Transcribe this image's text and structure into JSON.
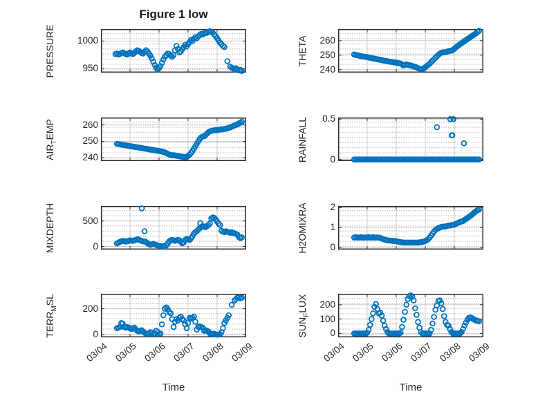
{
  "figure": {
    "title": "Figure 1 low",
    "xlabel": "Time",
    "x_tick_labels": [
      "03/04",
      "03/05",
      "03/06",
      "03/07",
      "03/08",
      "03/09"
    ],
    "marker_color": "#0072BD",
    "axis_color": "#2b2b2b",
    "grid_color": "#cbcbcb",
    "text_color": "#262626"
  },
  "chart_data": [
    {
      "id": "pressure",
      "type": "scatter",
      "row": 0,
      "col": 0,
      "ylabel_parts": {
        "pre": "PRESSURE",
        "sub": "",
        "post": ""
      },
      "ylim": [
        942,
        1022
      ],
      "yticks": [
        950,
        1000
      ],
      "x_unit": "days_since_03/04",
      "xlim": [
        0,
        5
      ],
      "show_x_labels": false,
      "series": {
        "marker": "circle",
        "start": 0.5,
        "step": 0.05,
        "values": [
          976,
          977,
          975,
          976,
          978,
          979,
          978,
          976,
          975,
          977,
          979,
          977,
          976,
          978,
          981,
          983,
          982,
          980,
          978,
          977,
          980,
          983,
          981,
          977,
          973,
          968,
          962,
          956,
          951,
          948,
          950,
          954,
          960,
          966,
          971,
          974,
          977,
          976,
          973,
          971,
          974,
          983,
          991,
          985,
          979,
          981,
          985,
          989,
          993,
          990,
          994,
          998,
          1002,
          1000,
          1004,
          1007,
          1005,
          1008,
          1011,
          1013,
          1012,
          1014,
          1016,
          1015,
          1017,
          1018,
          1017,
          1015,
          1012,
          1009,
          1005,
          1001,
          997,
          994,
          991,
          989,
          null,
          963,
          null,
          953,
          951,
          950,
          948,
          950,
          948,
          946,
          947,
          945
        ],
        "extra": []
      }
    },
    {
      "id": "theta",
      "type": "scatter",
      "row": 0,
      "col": 1,
      "ylabel_parts": {
        "pre": "THETA",
        "sub": "",
        "post": ""
      },
      "ylim": [
        238,
        268
      ],
      "yticks": [
        240,
        250,
        260
      ],
      "x_unit": "days_since_03/04",
      "xlim": [
        0,
        5
      ],
      "show_x_labels": false,
      "series": {
        "marker": "circle",
        "start": 0.55,
        "step": 0.05,
        "values": [
          250.5,
          250.2,
          250,
          249.8,
          249.5,
          249.3,
          249.1,
          249,
          248.8,
          248.6,
          248.4,
          248.2,
          248,
          247.8,
          247.6,
          247.4,
          247.2,
          247,
          246.8,
          246.6,
          246.4,
          246.2,
          246,
          245.8,
          245.6,
          245.5,
          245.3,
          245.1,
          245,
          244.8,
          244.6,
          244.5,
          244.3,
          243.6,
          242.9,
          243.3,
          243.7,
          243.4,
          243.1,
          242.9,
          242.6,
          242.3,
          242,
          241.5,
          241,
          240.7,
          240.4,
          240.6,
          241,
          241.7,
          242.5,
          243.3,
          244.2,
          245.2,
          246.2,
          247.2,
          248.2,
          249.2,
          250.2,
          251,
          251.6,
          251.9,
          252,
          252.1,
          252.4,
          252.8,
          253,
          253.1,
          253.6,
          254.4,
          255.3,
          256.1,
          256.9,
          257.6,
          258.3,
          259,
          259.7,
          260.4,
          261,
          261.7,
          262.4,
          263.1,
          263.8,
          264.5,
          265.2,
          266,
          266.8
        ],
        "extra": []
      }
    },
    {
      "id": "air-temp",
      "type": "scatter",
      "row": 1,
      "col": 0,
      "ylabel_parts": {
        "pre": "AIR",
        "sub": "T",
        "post": "EMP"
      },
      "ylim": [
        238,
        264.5
      ],
      "yticks": [
        240,
        250,
        260
      ],
      "x_unit": "days_since_03/04",
      "xlim": [
        0,
        5
      ],
      "show_x_labels": false,
      "series": {
        "marker": "circle",
        "start": 0.55,
        "step": 0.05,
        "values": [
          248.5,
          248.3,
          248.2,
          248,
          247.9,
          247.7,
          247.6,
          247.4,
          247.3,
          247.1,
          247,
          246.8,
          246.7,
          246.5,
          246.4,
          246.2,
          246.1,
          245.9,
          245.8,
          245.6,
          245.5,
          245.3,
          245.2,
          245,
          244.9,
          244.7,
          244.6,
          244.4,
          244.3,
          244.1,
          244,
          243.8,
          243.6,
          243.3,
          242.9,
          242.4,
          242,
          241.7,
          241.5,
          241.6,
          241.4,
          241.2,
          241.1,
          240.9,
          240.8,
          240.6,
          240.5,
          240.4,
          240.6,
          241.1,
          241.9,
          242.9,
          244.1,
          245.5,
          247,
          248.5,
          250,
          251.4,
          252.4,
          252.9,
          253.1,
          253.8,
          254.7,
          255.5,
          256.1,
          256.4,
          256.6,
          256.7,
          256.9,
          256.8,
          257,
          257.2,
          257.4,
          257.3,
          257.5,
          257.7,
          257.9,
          258.2,
          258.5,
          258.9,
          259.3,
          259.7,
          260,
          260.4,
          260.9,
          261.4,
          262
        ],
        "extra": []
      }
    },
    {
      "id": "rainfall",
      "type": "scatter",
      "row": 1,
      "col": 1,
      "ylabel_parts": {
        "pre": "RAINFALL",
        "sub": "",
        "post": ""
      },
      "ylim": [
        -0.02,
        0.52
      ],
      "yticks": [
        0,
        0.5
      ],
      "x_unit": "days_since_03/04",
      "xlim": [
        0,
        5
      ],
      "show_x_labels": false,
      "series": {
        "marker": "circle",
        "start": 0.55,
        "step": 0.05,
        "constant": 0,
        "count": 87,
        "extra": [
          [
            3.4,
            0.4
          ],
          [
            3.86,
            0.5
          ],
          [
            3.97,
            0.5
          ],
          [
            3.91,
            0.3
          ],
          [
            3.93,
            0.3
          ],
          [
            4.33,
            0.2
          ]
        ]
      }
    },
    {
      "id": "mixdepth",
      "type": "scatter",
      "row": 2,
      "col": 0,
      "ylabel_parts": {
        "pre": "MIXDEPTH",
        "sub": "",
        "post": ""
      },
      "ylim": [
        -61,
        796
      ],
      "yticks": [
        0,
        500
      ],
      "x_unit": "days_since_03/04",
      "xlim": [
        0,
        5
      ],
      "show_x_labels": false,
      "series": {
        "marker": "circle",
        "start": 0.55,
        "step": 0.05,
        "values": [
          60,
          75,
          90,
          100,
          110,
          105,
          95,
          100,
          110,
          120,
          115,
          110,
          120,
          130,
          140,
          135,
          120,
          110,
          100,
          95,
          90,
          65,
          45,
          30,
          40,
          50,
          40,
          30,
          20,
          10,
          5,
          0,
          10,
          0,
          20,
          60,
          100,
          120,
          130,
          120,
          110,
          120,
          130,
          120,
          90,
          60,
          80,
          130,
          150,
          140,
          130,
          160,
          200,
          250,
          280,
          300,
          330,
          360,
          380,
          400,
          390,
          380,
          400,
          420,
          450,
          550,
          570,
          560,
          530,
          490,
          450,
          420,
          310,
          290,
          280,
          300,
          290,
          280,
          270,
          280,
          270,
          260,
          245,
          230,
          185,
          165,
          180
        ],
        "extra": [
          [
            1.41,
            750
          ],
          [
            1.5,
            300
          ],
          [
            3.42,
            460
          ]
        ]
      }
    },
    {
      "id": "h2omixra",
      "type": "scatter",
      "row": 2,
      "col": 1,
      "ylabel_parts": {
        "pre": "H2OMIXRA",
        "sub": "",
        "post": ""
      },
      "ylim": [
        -0.1,
        2.08
      ],
      "yticks": [
        0,
        1,
        2
      ],
      "x_unit": "days_since_03/04",
      "xlim": [
        0,
        5
      ],
      "show_x_labels": false,
      "series": {
        "marker": "circle",
        "start": 0.55,
        "step": 0.05,
        "values": [
          0.5,
          0.52,
          0.5,
          0.51,
          0.5,
          0.52,
          0.5,
          0.5,
          0.51,
          0.5,
          0.52,
          0.5,
          0.5,
          0.52,
          0.5,
          0.5,
          0.51,
          0.5,
          0.48,
          0.45,
          0.42,
          0.4,
          0.38,
          0.36,
          0.35,
          0.35,
          0.34,
          0.33,
          0.33,
          0.32,
          0.3,
          0.28,
          0.27,
          0.26,
          0.25,
          0.25,
          0.25,
          0.25,
          0.25,
          0.25,
          0.25,
          0.25,
          0.25,
          0.25,
          0.25,
          0.26,
          0.27,
          0.28,
          0.3,
          0.33,
          0.37,
          0.42,
          0.5,
          0.6,
          0.7,
          0.8,
          0.88,
          0.93,
          0.97,
          1,
          1.03,
          1.05,
          1.05,
          1.06,
          1.08,
          1.1,
          1.1,
          1.12,
          1.13,
          1.15,
          1.18,
          1.22,
          1.25,
          1.28,
          1.3,
          1.33,
          1.38,
          1.43,
          1.48,
          1.53,
          1.58,
          1.64,
          1.7,
          1.76,
          1.82,
          1.87,
          1.9
        ],
        "extra": []
      }
    },
    {
      "id": "terr-msl",
      "type": "scatter",
      "row": 3,
      "col": 0,
      "ylabel_parts": {
        "pre": "TERR",
        "sub": "M",
        "post": "SL"
      },
      "ylim": [
        -20,
        315
      ],
      "yticks": [
        0,
        200
      ],
      "x_unit": "days_since_03/04",
      "xlim": [
        0,
        5
      ],
      "show_x_labels": true,
      "series": {
        "marker": "circle",
        "start": 0.55,
        "step": 0.05,
        "values": [
          50,
          55,
          60,
          90,
          85,
          60,
          55,
          60,
          55,
          50,
          45,
          50,
          55,
          40,
          30,
          25,
          30,
          35,
          25,
          15,
          10,
          5,
          10,
          20,
          15,
          5,
          10,
          30,
          20,
          5,
          10,
          80,
          150,
          200,
          210,
          195,
          175,
          165,
          120,
          60,
          100,
          120,
          110,
          130,
          140,
          120,
          110,
          80,
          50,
          90,
          130,
          125,
          130,
          140,
          100,
          40,
          60,
          65,
          60,
          55,
          30,
          35,
          30,
          25,
          10,
          8,
          5,
          8,
          3,
          0,
          2,
          5,
          20,
          50,
          90,
          110,
          130,
          150,
          null,
          230,
          null,
          265,
          275,
          285,
          290,
          280,
          285
        ],
        "extra": []
      }
    },
    {
      "id": "sun-flux",
      "type": "scatter",
      "row": 3,
      "col": 1,
      "ylabel_parts": {
        "pre": "SUN",
        "sub": "F",
        "post": "LUX"
      },
      "ylim": [
        -27,
        276
      ],
      "yticks": [
        0,
        100,
        200
      ],
      "x_unit": "days_since_03/04",
      "xlim": [
        0,
        5
      ],
      "show_x_labels": true,
      "series": {
        "marker": "circle",
        "start": 0.55,
        "step": 0.05,
        "values": [
          0,
          0,
          0,
          0,
          0,
          0,
          0,
          0,
          0,
          5,
          25,
          60,
          100,
          140,
          185,
          205,
          170,
          140,
          145,
          125,
          90,
          55,
          30,
          10,
          0,
          0,
          0,
          0,
          0,
          0,
          0,
          0,
          5,
          45,
          95,
          150,
          200,
          240,
          260,
          265,
          255,
          230,
          175,
          130,
          80,
          40,
          10,
          0,
          0,
          0,
          0,
          0,
          0,
          25,
          70,
          115,
          165,
          195,
          225,
          230,
          210,
          170,
          120,
          80,
          60,
          55,
          30,
          10,
          0,
          0,
          0,
          0,
          0,
          0,
          10,
          30,
          55,
          75,
          95,
          108,
          112,
          108,
          100,
          95,
          90,
          88,
          85
        ],
        "extra": []
      }
    }
  ]
}
